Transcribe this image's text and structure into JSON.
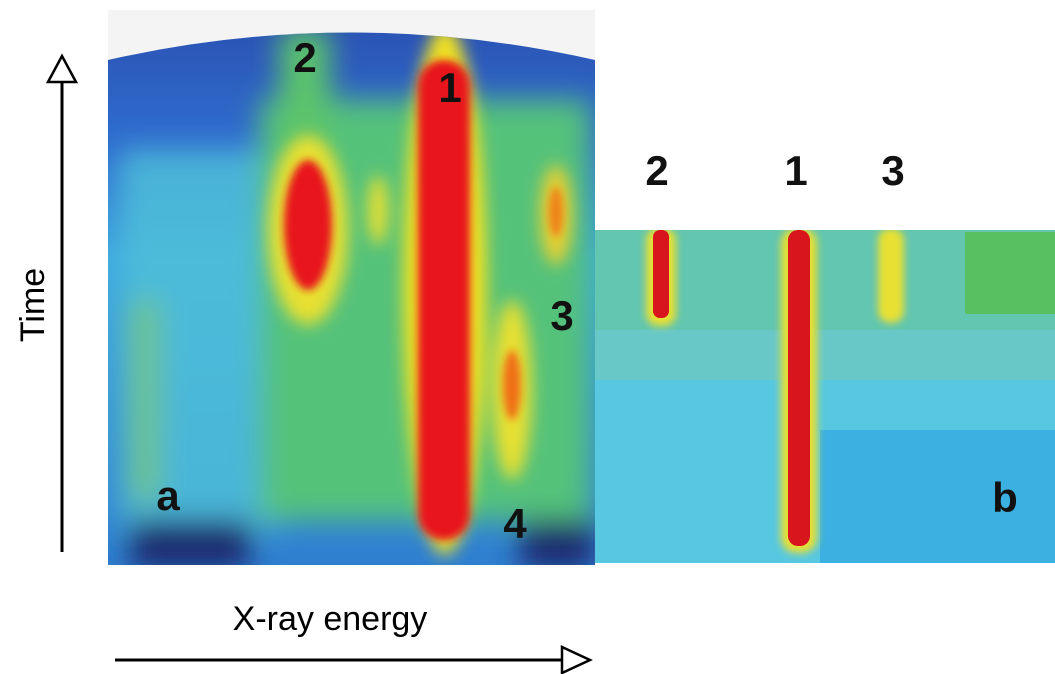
{
  "axes": {
    "y_label": "Time",
    "x_label": "X-ray energy"
  },
  "panels": [
    {
      "label": "a",
      "peaks": [
        "2",
        "1",
        "3",
        "4"
      ]
    },
    {
      "label": "b",
      "peaks": [
        "2",
        "1",
        "3"
      ]
    }
  ]
}
